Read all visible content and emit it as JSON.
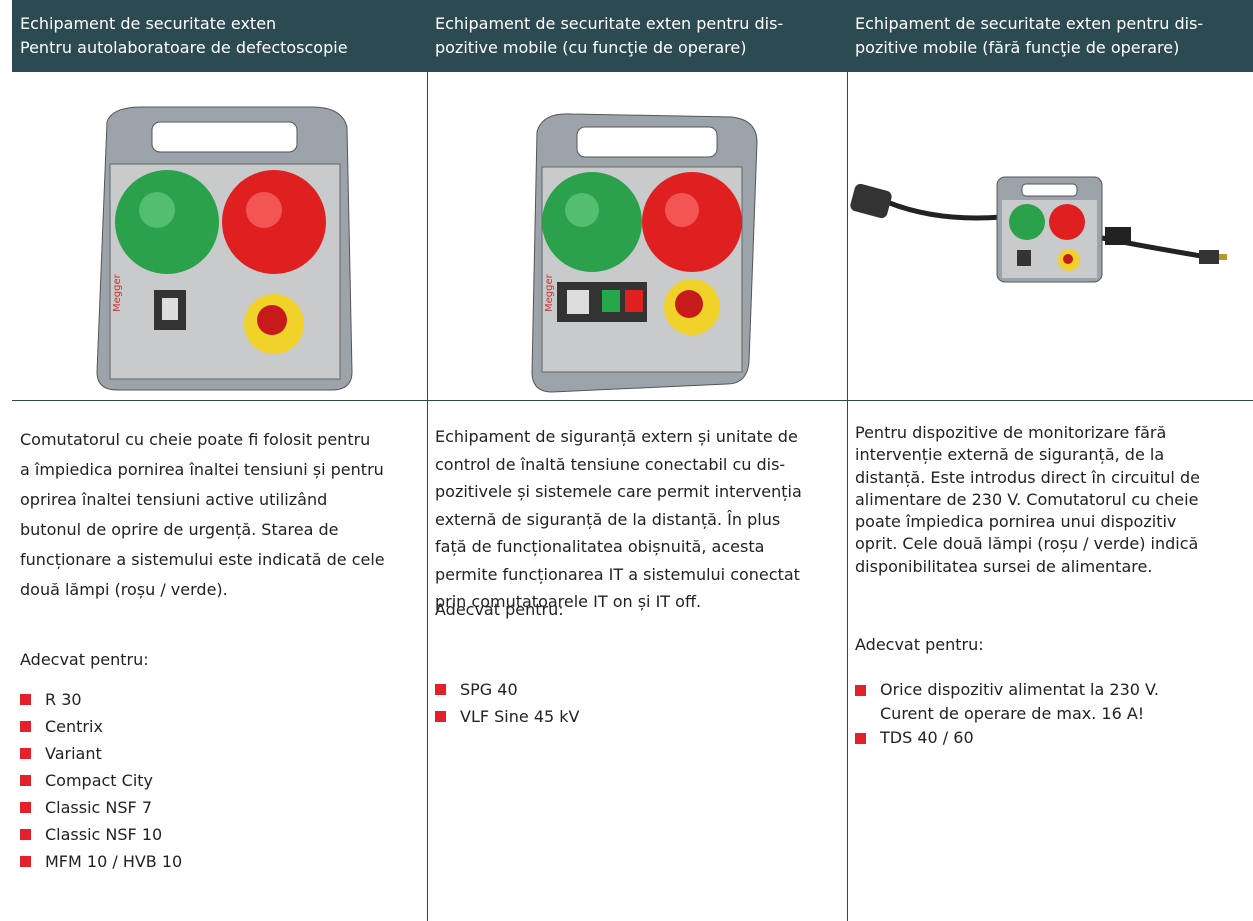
{
  "columns": [
    {
      "header": [
        "Echipament de securitate exten",
        "Pentru autolaboratoare de defectoscopie"
      ],
      "description": [
        "Comutatorul cu cheie poate fi folosit pentru",
        "a împiedica pornirea înaltei tensiuni și pentru",
        "oprirea înaltei tensiuni active utilizând",
        "butonul de oprire de urgență. Starea de",
        "funcționare a sistemului este indicată de cele",
        "două lămpi (roșu / verde)."
      ],
      "suitable_label": "Adecvat pentru:",
      "items": [
        [
          "R 30"
        ],
        [
          "Centrix"
        ],
        [
          "Variant"
        ],
        [
          "Compact City"
        ],
        [
          "Classic NSF 7"
        ],
        [
          "Classic NSF 10"
        ],
        [
          "MFM 10 / HVB 10"
        ]
      ]
    },
    {
      "header": [
        "Echipament de securitate exten pentru dis-",
        "pozitive mobile (cu funcţie de operare)"
      ],
      "description": [
        "Echipament de siguranță extern și unitate de",
        "control de înaltă tensiune conectabil cu dis-",
        "pozitivele și sistemele care permit intervenția",
        "externă de siguranță de la distanță. În plus",
        "față de funcționalitatea obișnuită, acesta",
        "permite funcționarea IT a sistemului conectat",
        "prin comutatoarele IT on și IT off."
      ],
      "suitable_label": "Adecvat pentru:",
      "items": [
        [
          "SPG 40"
        ],
        [
          "VLF Sine 45 kV"
        ]
      ]
    },
    {
      "header": [
        "Echipament de securitate exten pentru dis-",
        "pozitive mobile (fără funcţie de operare)"
      ],
      "description": [
        "Pentru dispozitive de monitorizare fără",
        "intervenție externă de siguranță, de la",
        "distanță. Este introdus direct în circuitul de",
        "alimentare de 230 V. Comutatorul cu cheie",
        "poate împiedica pornirea unui dispozitiv",
        "oprit. Cele două lămpi (roșu / verde) indică",
        "disponibilitatea sursei de alimentare."
      ],
      "suitable_label": "Adecvat pentru:",
      "items": [
        [
          "Orice dispozitiv alimentat la 230 V.",
          "Curent de operare de max. 16 A!"
        ],
        [
          "TDS 40 / 60"
        ]
      ]
    }
  ]
}
